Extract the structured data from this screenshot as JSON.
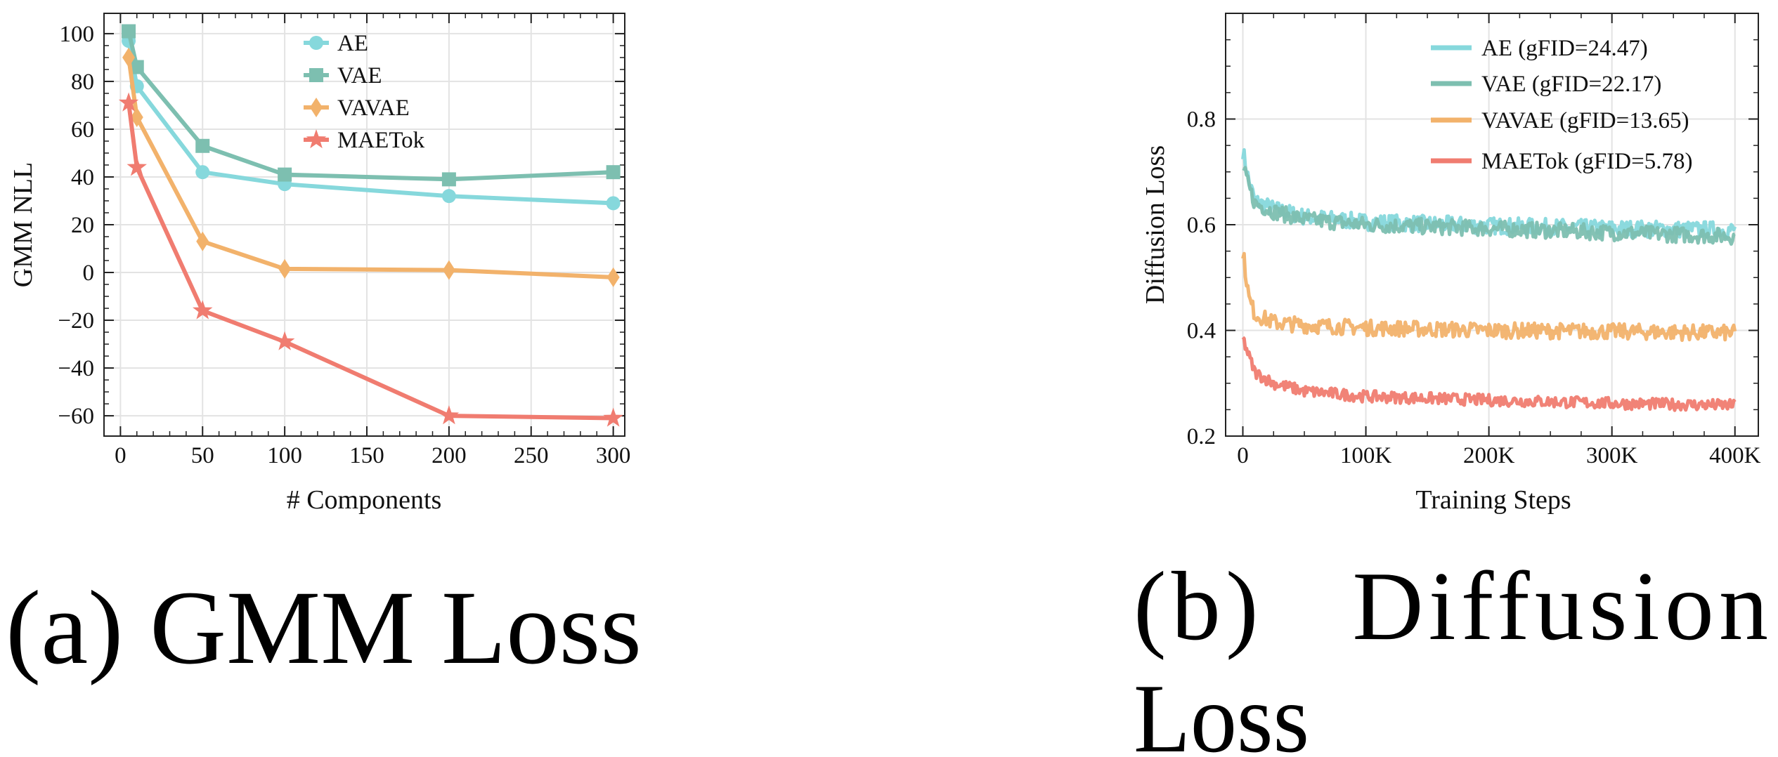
{
  "chart_data": [
    {
      "type": "line",
      "xlabel": "# Components",
      "ylabel": "GMM NLL",
      "xlim": [
        -10,
        307
      ],
      "ylim": [
        -68.5,
        108.5
      ],
      "xticks": [
        0,
        50,
        100,
        150,
        200,
        250,
        300
      ],
      "xtick_labels": [
        "0",
        "50",
        "100",
        "150",
        "200",
        "250",
        "300"
      ],
      "yticks": [
        100,
        80,
        60,
        40,
        20,
        0,
        -20,
        -40,
        -60
      ],
      "ytick_labels": [
        "100",
        "80",
        "60",
        "40",
        "20",
        "0",
        "−20",
        "−40",
        "−60"
      ],
      "grid": true,
      "legend_position": "top-center",
      "x": [
        5,
        10,
        50,
        100,
        200,
        300
      ],
      "series": [
        {
          "name": "AE",
          "marker": "circle",
          "color": "#86d8dc",
          "values": [
            97,
            78,
            42,
            37,
            32,
            29
          ]
        },
        {
          "name": "VAE",
          "marker": "square",
          "color": "#7dbfb0",
          "values": [
            101,
            86,
            53,
            41,
            39,
            42
          ]
        },
        {
          "name": "VAVAE",
          "marker": "diamond",
          "color": "#f2b26b",
          "values": [
            90,
            65,
            13,
            1.5,
            1,
            -2
          ]
        },
        {
          "name": "MAETok",
          "marker": "star",
          "color": "#f07c70",
          "values": [
            71,
            44,
            -16,
            -29,
            -60,
            -61
          ]
        }
      ],
      "caption": "(a) GMM Loss"
    },
    {
      "type": "line",
      "xlabel": "Training Steps",
      "ylabel": "Diffusion Loss",
      "xlim": [
        -14000,
        419000
      ],
      "ylim": [
        0.2,
        1.0
      ],
      "xticks": [
        0,
        100000,
        200000,
        300000,
        400000
      ],
      "xtick_labels": [
        "0",
        "100K",
        "200K",
        "300K",
        "400K"
      ],
      "yticks": [
        0.8,
        0.6,
        0.4,
        0.2
      ],
      "ytick_labels": [
        "0.8",
        "0.6",
        "0.4",
        "0.2"
      ],
      "grid": true,
      "legend_position": "top-right",
      "x": [
        0,
        5000,
        10000,
        25000,
        50000,
        100000,
        200000,
        300000,
        400000
      ],
      "series": [
        {
          "name": "AE (gFID=24.47)",
          "color": "#86d8dc",
          "values": [
            0.74,
            0.68,
            0.645,
            0.63,
            0.615,
            0.605,
            0.598,
            0.593,
            0.59
          ]
        },
        {
          "name": "VAE (gFID=22.17)",
          "color": "#7dbfb0",
          "values": [
            0.71,
            0.67,
            0.64,
            0.625,
            0.61,
            0.6,
            0.593,
            0.585,
            0.578
          ]
        },
        {
          "name": "VAVAE (gFID=13.65)",
          "color": "#f2b26b",
          "values": [
            0.55,
            0.46,
            0.43,
            0.415,
            0.41,
            0.405,
            0.4,
            0.398,
            0.395
          ]
        },
        {
          "name": "MAETok (gFID=5.78)",
          "color": "#f07c70",
          "values": [
            0.385,
            0.35,
            0.32,
            0.3,
            0.285,
            0.275,
            0.268,
            0.262,
            0.258
          ]
        }
      ],
      "caption_line1": "(b)   Diffusion",
      "caption_line2": "Loss"
    }
  ]
}
